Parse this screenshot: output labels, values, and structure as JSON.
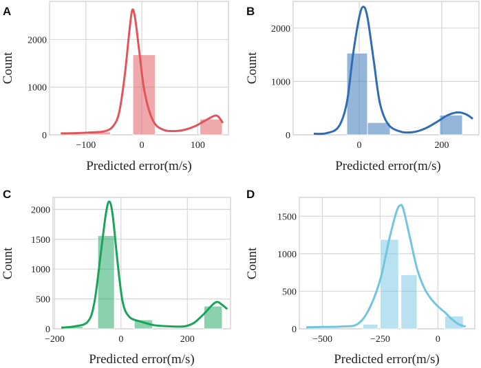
{
  "chart_data": [
    {
      "panel": "A",
      "type": "bar",
      "xlabel": "Predicted error(m/s)",
      "ylabel": "Count",
      "xlim": [
        -165,
        155
      ],
      "ylim": [
        0,
        2800
      ],
      "xticks": [
        -100,
        0,
        100
      ],
      "yticks": [
        0,
        1000,
        2000
      ],
      "color": "#e0545a",
      "bars": [
        {
          "x0": -96,
          "x1": -56,
          "value": 60
        },
        {
          "x0": -16,
          "x1": 24,
          "value": 1680
        },
        {
          "x0": 104,
          "x1": 144,
          "value": 330
        }
      ],
      "kde": [
        [
          -145,
          30
        ],
        [
          -120,
          35
        ],
        [
          -90,
          50
        ],
        [
          -65,
          80
        ],
        [
          -50,
          200
        ],
        [
          -40,
          500
        ],
        [
          -30,
          1300
        ],
        [
          -22,
          2200
        ],
        [
          -17,
          2620
        ],
        [
          -12,
          2450
        ],
        [
          -5,
          1800
        ],
        [
          5,
          900
        ],
        [
          20,
          300
        ],
        [
          40,
          100
        ],
        [
          70,
          90
        ],
        [
          95,
          180
        ],
        [
          115,
          310
        ],
        [
          130,
          400
        ],
        [
          137,
          380
        ],
        [
          145,
          250
        ]
      ]
    },
    {
      "panel": "B",
      "type": "bar",
      "xlabel": "Predicted error(m/s)",
      "ylabel": "Count",
      "xlim": [
        -160,
        290
      ],
      "ylim": [
        0,
        2500
      ],
      "xticks": [
        0,
        200
      ],
      "yticks": [
        0,
        1000,
        2000
      ],
      "color": "#2e6db4",
      "bars": [
        {
          "x0": -30,
          "x1": 20,
          "value": 1530
        },
        {
          "x0": 20,
          "x1": 75,
          "value": 230
        },
        {
          "x0": 195,
          "x1": 250,
          "value": 370
        }
      ],
      "kde": [
        [
          -110,
          20
        ],
        [
          -80,
          30
        ],
        [
          -50,
          150
        ],
        [
          -30,
          600
        ],
        [
          -15,
          1500
        ],
        [
          0,
          2200
        ],
        [
          10,
          2400
        ],
        [
          20,
          2200
        ],
        [
          35,
          1400
        ],
        [
          50,
          600
        ],
        [
          70,
          200
        ],
        [
          100,
          60
        ],
        [
          130,
          50
        ],
        [
          160,
          120
        ],
        [
          190,
          250
        ],
        [
          215,
          370
        ],
        [
          240,
          420
        ],
        [
          260,
          380
        ],
        [
          275,
          300
        ]
      ]
    },
    {
      "panel": "C",
      "type": "bar",
      "xlabel": "Predicted error(m/s)",
      "ylabel": "Count",
      "xlim": [
        -205,
        330
      ],
      "ylim": [
        0,
        2200
      ],
      "xticks": [
        -200,
        0,
        200
      ],
      "yticks": [
        0,
        500,
        1000,
        1500,
        2000
      ],
      "color": "#1aa35b",
      "bars": [
        {
          "x0": -170,
          "x1": -115,
          "value": 40
        },
        {
          "x0": -70,
          "x1": -20,
          "value": 1560
        },
        {
          "x0": 40,
          "x1": 95,
          "value": 150
        },
        {
          "x0": 250,
          "x1": 305,
          "value": 380
        }
      ],
      "kde": [
        [
          -180,
          20
        ],
        [
          -140,
          40
        ],
        [
          -100,
          120
        ],
        [
          -80,
          450
        ],
        [
          -60,
          1300
        ],
        [
          -45,
          1950
        ],
        [
          -35,
          2130
        ],
        [
          -25,
          1900
        ],
        [
          -10,
          1100
        ],
        [
          5,
          450
        ],
        [
          25,
          200
        ],
        [
          60,
          120
        ],
        [
          100,
          60
        ],
        [
          150,
          40
        ],
        [
          190,
          40
        ],
        [
          220,
          100
        ],
        [
          250,
          250
        ],
        [
          275,
          400
        ],
        [
          290,
          450
        ],
        [
          305,
          400
        ],
        [
          320,
          330
        ]
      ]
    },
    {
      "panel": "D",
      "type": "bar",
      "xlabel": "Predicted error(m/s)",
      "ylabel": "Count",
      "xlim": [
        -600,
        160
      ],
      "ylim": [
        0,
        1750
      ],
      "xticks": [
        -500,
        -250,
        0
      ],
      "yticks": [
        0,
        500,
        1000,
        1500
      ],
      "color": "#72c5df",
      "bars": [
        {
          "x0": -325,
          "x1": -260,
          "value": 60
        },
        {
          "x0": -250,
          "x1": -170,
          "value": 1190
        },
        {
          "x0": -160,
          "x1": -90,
          "value": 720
        },
        {
          "x0": 30,
          "x1": 110,
          "value": 170
        }
      ],
      "kde": [
        [
          -570,
          20
        ],
        [
          -500,
          25
        ],
        [
          -420,
          30
        ],
        [
          -350,
          60
        ],
        [
          -300,
          250
        ],
        [
          -250,
          650
        ],
        [
          -210,
          1200
        ],
        [
          -180,
          1550
        ],
        [
          -165,
          1640
        ],
        [
          -150,
          1600
        ],
        [
          -120,
          1200
        ],
        [
          -90,
          800
        ],
        [
          -60,
          550
        ],
        [
          -30,
          400
        ],
        [
          0,
          300
        ],
        [
          30,
          220
        ],
        [
          60,
          130
        ],
        [
          90,
          60
        ],
        [
          120,
          30
        ]
      ]
    }
  ]
}
